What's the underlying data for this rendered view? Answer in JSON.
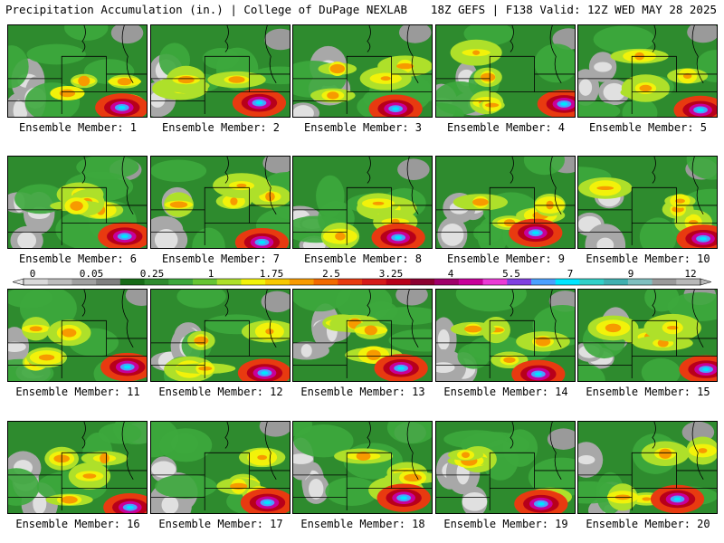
{
  "header": {
    "left": "Precipitation Accumulation (in.) | College of DuPage NEXLAB",
    "right": "18Z GEFS | F138 Valid: 12Z WED MAY 28 2025"
  },
  "colorbar": {
    "tick_labels": [
      "0",
      "0.05",
      "0.25",
      "1",
      "1.75",
      "2.5",
      "3.25",
      "4",
      "5.5",
      "7",
      "9",
      "12"
    ],
    "colors": [
      "#d9d9d9",
      "#bdbdbd",
      "#a0a0a0",
      "#808080",
      "#176b17",
      "#2e8b2e",
      "#3da83d",
      "#66c533",
      "#aee02a",
      "#f2f20a",
      "#f7c800",
      "#f79a00",
      "#f26a00",
      "#e83a10",
      "#d61a1a",
      "#b8001a",
      "#8c0030",
      "#a0006a",
      "#c8009a",
      "#ea3ad6",
      "#8040e0",
      "#4aa0ff",
      "#00e5ff",
      "#30d0c8",
      "#40b0b0",
      "#7fbfbf",
      "#9a9a9a",
      "#b8b8b8"
    ]
  },
  "panels": [
    {
      "label": "Ensemble Member: 1"
    },
    {
      "label": "Ensemble Member: 2"
    },
    {
      "label": "Ensemble Member: 3"
    },
    {
      "label": "Ensemble Member: 4"
    },
    {
      "label": "Ensemble Member: 5"
    },
    {
      "label": "Ensemble Member: 6"
    },
    {
      "label": "Ensemble Member: 7"
    },
    {
      "label": "Ensemble Member: 8"
    },
    {
      "label": "Ensemble Member: 9"
    },
    {
      "label": "Ensemble Member: 10"
    },
    {
      "label": "Ensemble Member: 11"
    },
    {
      "label": "Ensemble Member: 12"
    },
    {
      "label": "Ensemble Member: 13"
    },
    {
      "label": "Ensemble Member: 14"
    },
    {
      "label": "Ensemble Member: 15"
    },
    {
      "label": "Ensemble Member: 16"
    },
    {
      "label": "Ensemble Member: 17"
    },
    {
      "label": "Ensemble Member: 18"
    },
    {
      "label": "Ensemble Member: 19"
    },
    {
      "label": "Ensemble Member: 20"
    }
  ]
}
